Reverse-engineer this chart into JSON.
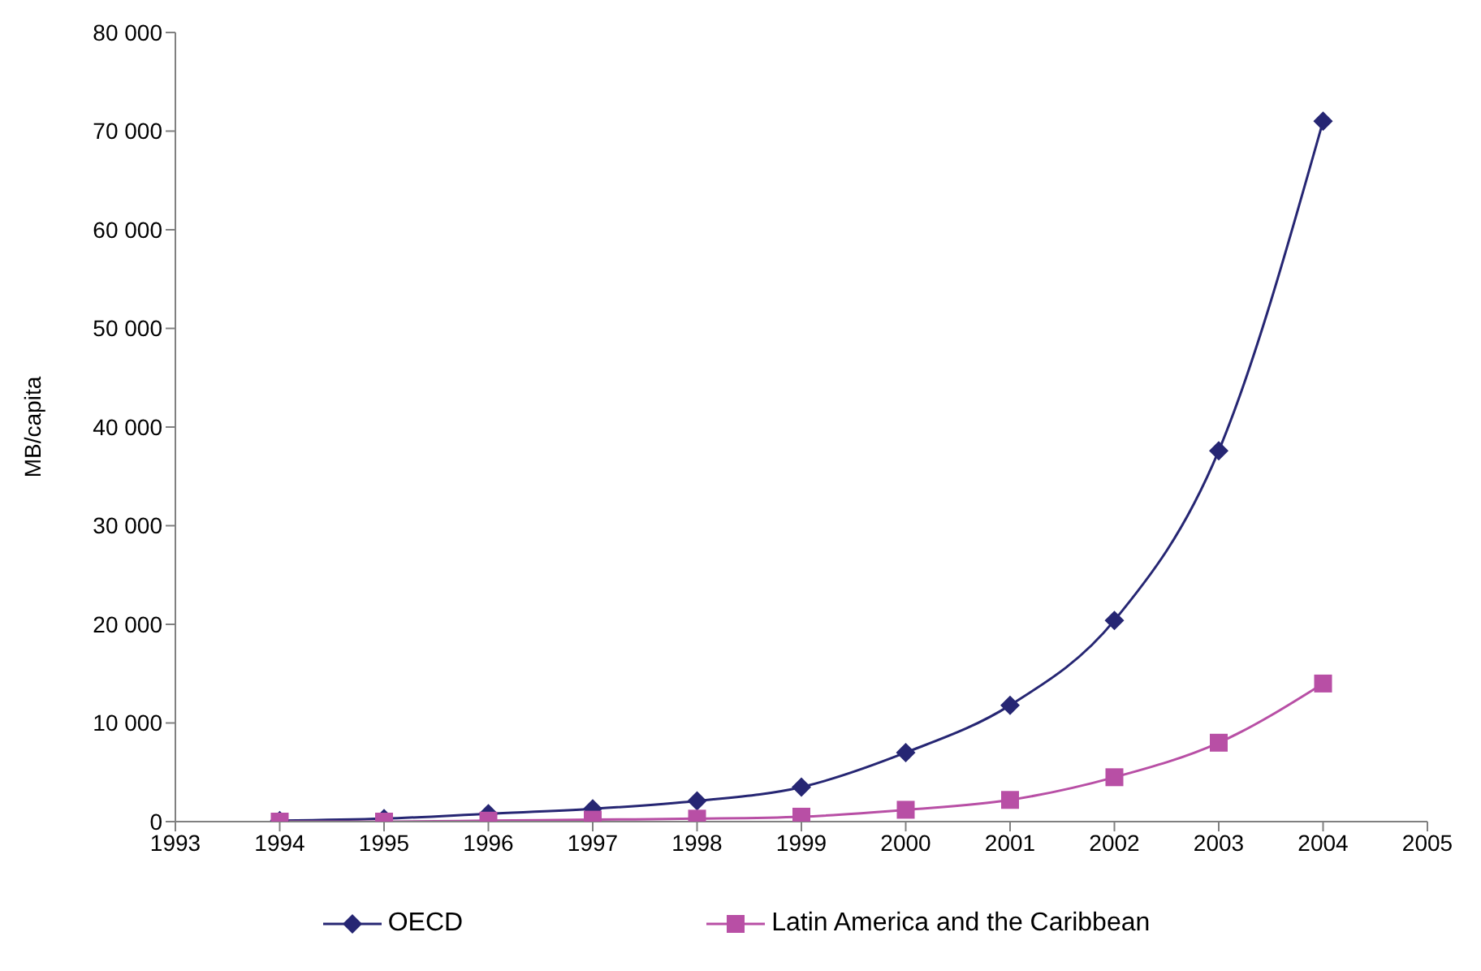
{
  "chart_data": {
    "type": "line",
    "ylabel": "MB/capita",
    "x": [
      1994,
      1995,
      1996,
      1997,
      1998,
      1999,
      2000,
      2001,
      2002,
      2003,
      2004
    ],
    "series": [
      {
        "name": "OECD",
        "color": "#262673",
        "marker": "diamond",
        "values": [
          100,
          300,
          800,
          1300,
          2100,
          3500,
          7000,
          11800,
          20400,
          37600,
          71000
        ]
      },
      {
        "name": "Latin America and the Caribbean",
        "color": "#b84fa5",
        "marker": "square",
        "values": [
          0,
          0,
          100,
          200,
          300,
          500,
          1200,
          2200,
          4500,
          8000,
          14000
        ]
      }
    ],
    "xlim": [
      1993,
      2005
    ],
    "xticks": [
      1993,
      1994,
      1995,
      1996,
      1997,
      1998,
      1999,
      2000,
      2001,
      2002,
      2003,
      2004,
      2005
    ],
    "ylim": [
      0,
      80000
    ],
    "yticks": [
      0,
      {
        "value": 10000,
        "label": "10 000"
      },
      {
        "value": 20000,
        "label": "20 000"
      },
      {
        "value": 30000,
        "label": "30 000"
      },
      {
        "value": 40000,
        "label": "40 000"
      },
      {
        "value": 50000,
        "label": "50 000"
      },
      {
        "value": 60000,
        "label": "60 000"
      },
      {
        "value": 70000,
        "label": "70 000"
      },
      {
        "value": 80000,
        "label": "80 000"
      }
    ],
    "grid": false,
    "legend": "bottom",
    "line_style": "solid"
  }
}
